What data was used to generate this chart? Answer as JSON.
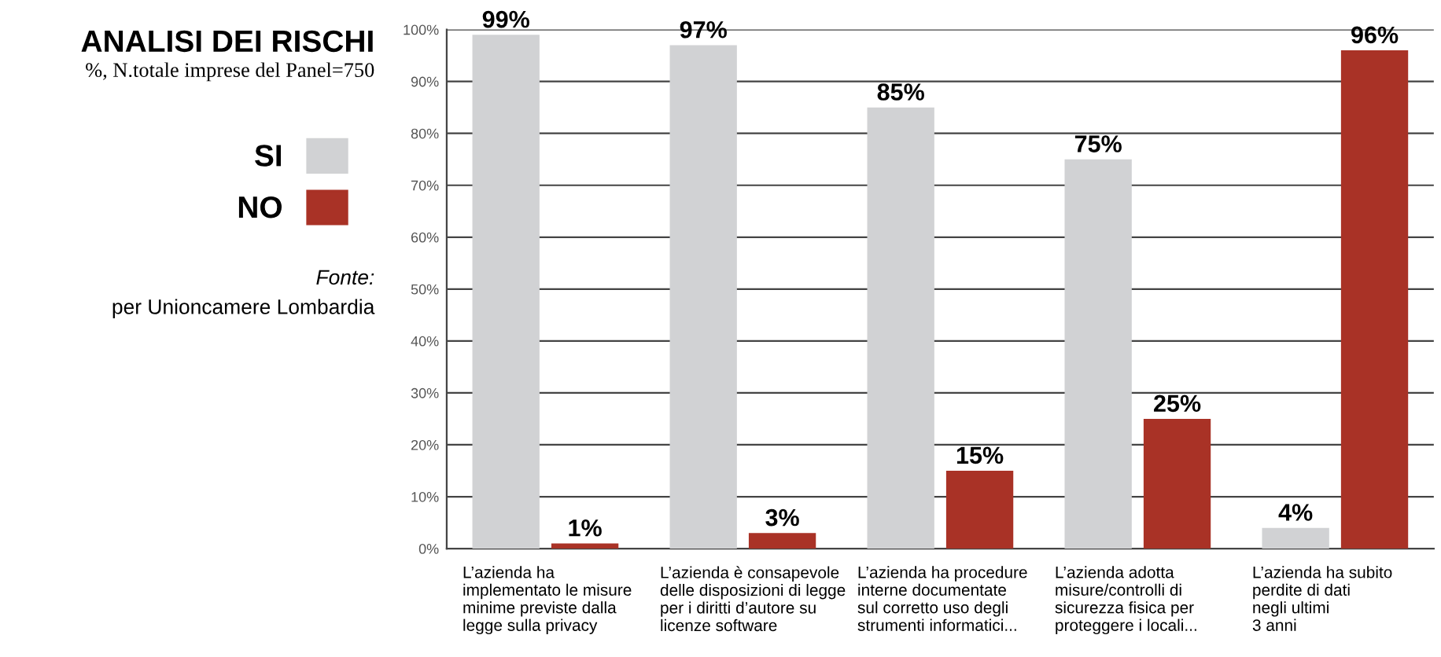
{
  "chart_data": {
    "type": "bar",
    "title": "ANALISI DEI RISCHI",
    "subtitle": "%, N.totale imprese del Panel=750",
    "categories": [
      "L’azienda ha\nimplementato le misure\nminime previste dalla\nlegge sulla privacy",
      "L’azienda è consapevole\ndelle disposizioni di legge\nper i diritti d’autore su\nlicenze software",
      "L’azienda ha procedure\ninterne documentate\nsul corretto uso degli\nstrumenti informatici...",
      "L’azienda adotta\nmisure/controlli di\nsicurezza fisica per\nproteggere i locali...",
      "L’azienda ha subito\nperdite di dati\nnegli ultimi\n3 anni"
    ],
    "series": [
      {
        "name": "SI",
        "color": "#d1d2d4",
        "values": [
          99,
          97,
          85,
          75,
          4
        ],
        "value_labels": [
          "99%",
          "97%",
          "85%",
          "75%",
          "4%"
        ]
      },
      {
        "name": "NO",
        "color": "#a93226",
        "values": [
          1,
          3,
          15,
          25,
          96
        ],
        "value_labels": [
          "1%",
          "3%",
          "15%",
          "25%",
          "96%"
        ]
      }
    ],
    "ylim": [
      0,
      100
    ],
    "yticks": [
      {
        "value": 0,
        "label": "0%"
      },
      {
        "value": 10,
        "label": "10%"
      },
      {
        "value": 20,
        "label": "20%"
      },
      {
        "value": 30,
        "label": "30%"
      },
      {
        "value": 40,
        "label": "40%"
      },
      {
        "value": 50,
        "label": "50%"
      },
      {
        "value": 60,
        "label": "60%"
      },
      {
        "value": 70,
        "label": "70%"
      },
      {
        "value": 80,
        "label": "80%"
      },
      {
        "value": 90,
        "label": "90%"
      },
      {
        "value": 100,
        "label": "100%"
      }
    ],
    "grid": "y",
    "legend": "left",
    "annotations": [
      "Fonte:",
      "per Unioncamere Lombardia"
    ]
  }
}
